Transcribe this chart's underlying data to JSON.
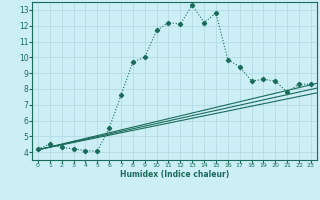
{
  "xlabel": "Humidex (Indice chaleur)",
  "bg_color": "#cceef5",
  "line_color": "#1a6b5a",
  "grid_color": "#b8dde6",
  "xlim": [
    -0.5,
    23.5
  ],
  "ylim": [
    3.5,
    13.5
  ],
  "xticks": [
    0,
    1,
    2,
    3,
    4,
    5,
    6,
    7,
    8,
    9,
    10,
    11,
    12,
    13,
    14,
    15,
    16,
    17,
    18,
    19,
    20,
    21,
    22,
    23
  ],
  "yticks": [
    4,
    5,
    6,
    7,
    8,
    9,
    10,
    11,
    12,
    13
  ],
  "curve_x": [
    0,
    1,
    2,
    3,
    4,
    5,
    6,
    7,
    8,
    9,
    10,
    11,
    12,
    13,
    14,
    15,
    16,
    17,
    18,
    19,
    20,
    21,
    22,
    23
  ],
  "curve_y": [
    4.2,
    4.5,
    4.3,
    4.2,
    4.1,
    4.05,
    5.5,
    7.6,
    9.7,
    10.0,
    11.7,
    12.2,
    12.1,
    13.3,
    12.2,
    12.8,
    9.85,
    9.4,
    8.5,
    8.6,
    8.5,
    7.8,
    8.3,
    8.3
  ],
  "line1_y": [
    4.15,
    8.35
  ],
  "line2_y": [
    4.15,
    8.05
  ],
  "line3_y": [
    4.15,
    7.75
  ]
}
